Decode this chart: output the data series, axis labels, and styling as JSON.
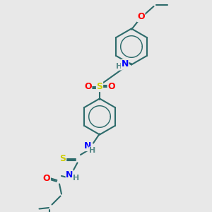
{
  "background_color": "#e8e8e8",
  "bond_color": "#2d6b6b",
  "atom_colors": {
    "N": "#0000ff",
    "O": "#ff0000",
    "S": "#cccc00",
    "H": "#5a8a8a",
    "C": "#2d6b6b"
  },
  "bond_width": 1.5,
  "font_size_atom": 9,
  "fig_size": [
    3.0,
    3.0
  ],
  "dpi": 100
}
